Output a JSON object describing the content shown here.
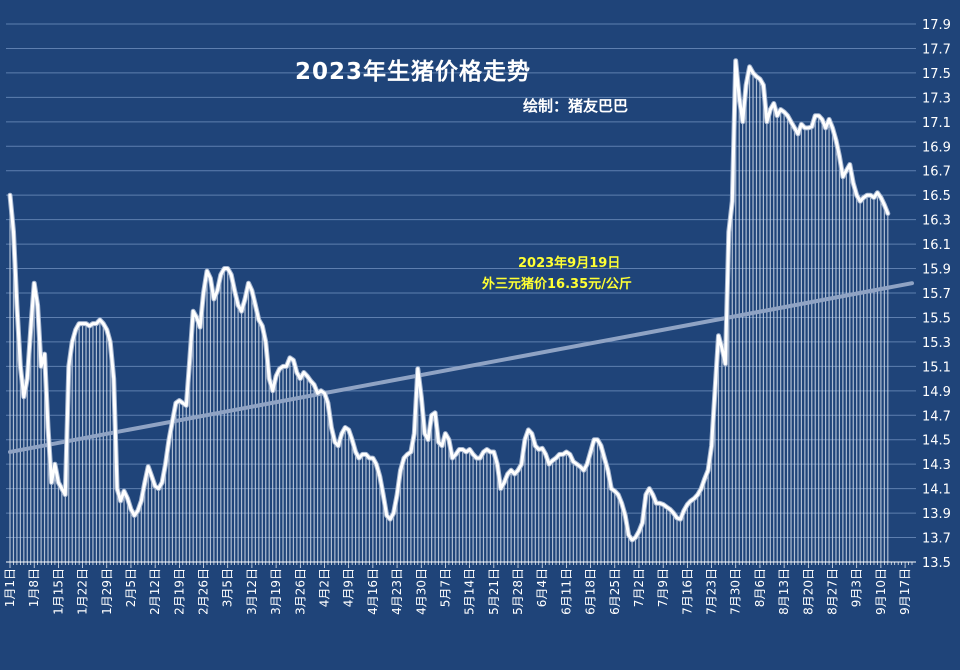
{
  "chart_data": {
    "type": "line",
    "title": "2023年生猪价格走势",
    "subtitle": "绘制：猪友巴巴",
    "annotation": [
      "2023年9月19日",
      "外三元猪价16.35元/公斤"
    ],
    "y_ticks": [
      "13.5",
      "13.7",
      "13.9",
      "14.1",
      "14.3",
      "14.5",
      "14.7",
      "14.9",
      "15.1",
      "15.3",
      "15.5",
      "15.7",
      "15.9",
      "16.1",
      "16.3",
      "16.5",
      "16.7",
      "16.9",
      "17.1",
      "17.3",
      "17.5",
      "17.7",
      "17.9"
    ],
    "ylim": [
      13.5,
      17.9
    ],
    "x_ticks": [
      "1月1日",
      "1月8日",
      "1月15日",
      "1月22日",
      "1月29日",
      "2月5日",
      "2月12日",
      "2月19日",
      "2月26日",
      "3月5日",
      "3月12日",
      "3月19日",
      "3月26日",
      "4月2日",
      "4月9日",
      "4月16日",
      "4月23日",
      "4月30日",
      "5月7日",
      "5月14日",
      "5月21日",
      "5月28日",
      "6月4日",
      "6月11日",
      "6月18日",
      "6月25日",
      "7月2日",
      "7月9日",
      "7月16日",
      "7月23日",
      "7月30日",
      "8月6日",
      "8月13日",
      "8月20日",
      "8月27日",
      "9月3日",
      "9月10日",
      "9月17日"
    ],
    "x_days": 262,
    "grid": true,
    "y_axis_position": "right",
    "trendline": {
      "start": 14.4,
      "end": 15.78
    },
    "series": [
      {
        "color": "#FFFFFF",
        "points": [
          [
            0,
            16.5
          ],
          [
            1,
            16.2
          ],
          [
            2,
            15.6
          ],
          [
            3,
            15.1
          ],
          [
            4,
            14.85
          ],
          [
            5,
            15.0
          ],
          [
            6,
            15.4
          ],
          [
            7,
            15.78
          ],
          [
            8,
            15.6
          ],
          [
            9,
            15.1
          ],
          [
            10,
            15.2
          ],
          [
            11,
            14.6
          ],
          [
            12,
            14.15
          ],
          [
            13,
            14.3
          ],
          [
            14,
            14.15
          ],
          [
            15,
            14.1
          ],
          [
            16,
            14.05
          ],
          [
            17,
            15.1
          ],
          [
            18,
            15.3
          ],
          [
            19,
            15.4
          ],
          [
            20,
            15.45
          ],
          [
            21,
            15.45
          ],
          [
            22,
            15.45
          ],
          [
            23,
            15.43
          ],
          [
            24,
            15.45
          ],
          [
            25,
            15.45
          ],
          [
            26,
            15.48
          ],
          [
            27,
            15.45
          ],
          [
            28,
            15.4
          ],
          [
            29,
            15.3
          ],
          [
            30,
            15.0
          ],
          [
            31,
            14.1
          ],
          [
            32,
            14.0
          ],
          [
            33,
            14.08
          ],
          [
            34,
            14.02
          ],
          [
            35,
            13.93
          ],
          [
            36,
            13.88
          ],
          [
            37,
            13.92
          ],
          [
            38,
            14.0
          ],
          [
            39,
            14.15
          ],
          [
            40,
            14.28
          ],
          [
            41,
            14.2
          ],
          [
            42,
            14.12
          ],
          [
            43,
            14.1
          ],
          [
            44,
            14.15
          ],
          [
            45,
            14.3
          ],
          [
            46,
            14.5
          ],
          [
            47,
            14.65
          ],
          [
            48,
            14.8
          ],
          [
            49,
            14.82
          ],
          [
            50,
            14.8
          ],
          [
            51,
            14.78
          ],
          [
            52,
            15.15
          ],
          [
            53,
            15.55
          ],
          [
            54,
            15.5
          ],
          [
            55,
            15.42
          ],
          [
            56,
            15.7
          ],
          [
            57,
            15.88
          ],
          [
            58,
            15.82
          ],
          [
            59,
            15.65
          ],
          [
            60,
            15.72
          ],
          [
            61,
            15.85
          ],
          [
            62,
            15.9
          ],
          [
            63,
            15.9
          ],
          [
            64,
            15.85
          ],
          [
            65,
            15.72
          ],
          [
            66,
            15.6
          ],
          [
            67,
            15.55
          ],
          [
            68,
            15.65
          ],
          [
            69,
            15.78
          ],
          [
            70,
            15.72
          ],
          [
            71,
            15.6
          ],
          [
            72,
            15.48
          ],
          [
            73,
            15.43
          ],
          [
            74,
            15.3
          ],
          [
            75,
            15.0
          ],
          [
            76,
            14.9
          ],
          [
            77,
            15.02
          ],
          [
            78,
            15.08
          ],
          [
            79,
            15.1
          ],
          [
            80,
            15.1
          ],
          [
            81,
            15.17
          ],
          [
            82,
            15.15
          ],
          [
            83,
            15.05
          ],
          [
            84,
            15.0
          ],
          [
            85,
            15.05
          ],
          [
            86,
            15.02
          ],
          [
            87,
            14.98
          ],
          [
            88,
            14.95
          ],
          [
            89,
            14.88
          ],
          [
            90,
            14.9
          ],
          [
            91,
            14.88
          ],
          [
            92,
            14.8
          ],
          [
            93,
            14.6
          ],
          [
            94,
            14.48
          ],
          [
            95,
            14.45
          ],
          [
            96,
            14.55
          ],
          [
            97,
            14.6
          ],
          [
            98,
            14.58
          ],
          [
            99,
            14.5
          ],
          [
            100,
            14.4
          ],
          [
            101,
            14.35
          ],
          [
            102,
            14.38
          ],
          [
            103,
            14.38
          ],
          [
            104,
            14.35
          ],
          [
            105,
            14.35
          ],
          [
            106,
            14.3
          ],
          [
            107,
            14.2
          ],
          [
            108,
            14.05
          ],
          [
            109,
            13.88
          ],
          [
            110,
            13.85
          ],
          [
            111,
            13.9
          ],
          [
            112,
            14.05
          ],
          [
            113,
            14.25
          ],
          [
            114,
            14.35
          ],
          [
            115,
            14.38
          ],
          [
            116,
            14.4
          ],
          [
            117,
            14.55
          ],
          [
            118,
            15.08
          ],
          [
            119,
            14.85
          ],
          [
            120,
            14.55
          ],
          [
            121,
            14.5
          ],
          [
            122,
            14.7
          ],
          [
            123,
            14.72
          ],
          [
            124,
            14.48
          ],
          [
            125,
            14.45
          ],
          [
            126,
            14.55
          ],
          [
            127,
            14.5
          ],
          [
            128,
            14.35
          ],
          [
            129,
            14.38
          ],
          [
            130,
            14.42
          ],
          [
            131,
            14.42
          ],
          [
            132,
            14.4
          ],
          [
            133,
            14.42
          ],
          [
            134,
            14.38
          ],
          [
            135,
            14.35
          ],
          [
            136,
            14.35
          ],
          [
            137,
            14.4
          ],
          [
            138,
            14.42
          ],
          [
            139,
            14.4
          ],
          [
            140,
            14.4
          ],
          [
            141,
            14.3
          ],
          [
            142,
            14.1
          ],
          [
            143,
            14.15
          ],
          [
            144,
            14.22
          ],
          [
            145,
            14.25
          ],
          [
            146,
            14.22
          ],
          [
            147,
            14.25
          ],
          [
            148,
            14.3
          ],
          [
            149,
            14.5
          ],
          [
            150,
            14.58
          ],
          [
            151,
            14.55
          ],
          [
            152,
            14.45
          ],
          [
            153,
            14.42
          ],
          [
            154,
            14.43
          ],
          [
            155,
            14.38
          ],
          [
            156,
            14.3
          ],
          [
            157,
            14.33
          ],
          [
            158,
            14.35
          ],
          [
            159,
            14.38
          ],
          [
            160,
            14.38
          ],
          [
            161,
            14.4
          ],
          [
            162,
            14.38
          ],
          [
            163,
            14.32
          ],
          [
            164,
            14.3
          ],
          [
            165,
            14.28
          ],
          [
            166,
            14.25
          ],
          [
            167,
            14.3
          ],
          [
            168,
            14.4
          ],
          [
            169,
            14.5
          ],
          [
            170,
            14.5
          ],
          [
            171,
            14.45
          ],
          [
            172,
            14.35
          ],
          [
            173,
            14.25
          ],
          [
            174,
            14.1
          ],
          [
            175,
            14.08
          ],
          [
            176,
            14.05
          ],
          [
            177,
            13.98
          ],
          [
            178,
            13.88
          ],
          [
            179,
            13.72
          ],
          [
            180,
            13.68
          ],
          [
            181,
            13.7
          ],
          [
            182,
            13.75
          ],
          [
            183,
            13.82
          ],
          [
            184,
            14.05
          ],
          [
            185,
            14.1
          ],
          [
            186,
            14.05
          ],
          [
            187,
            13.98
          ],
          [
            188,
            13.98
          ],
          [
            189,
            13.97
          ],
          [
            190,
            13.95
          ],
          [
            191,
            13.93
          ],
          [
            192,
            13.9
          ],
          [
            193,
            13.86
          ],
          [
            194,
            13.85
          ],
          [
            195,
            13.92
          ],
          [
            196,
            13.97
          ],
          [
            197,
            14.0
          ],
          [
            198,
            14.02
          ],
          [
            199,
            14.05
          ],
          [
            200,
            14.1
          ],
          [
            201,
            14.18
          ],
          [
            202,
            14.25
          ],
          [
            203,
            14.45
          ],
          [
            204,
            14.9
          ],
          [
            205,
            15.35
          ],
          [
            206,
            15.25
          ],
          [
            207,
            15.12
          ],
          [
            208,
            16.2
          ],
          [
            209,
            16.45
          ],
          [
            210,
            17.6
          ],
          [
            211,
            17.3
          ],
          [
            212,
            17.1
          ],
          [
            213,
            17.4
          ],
          [
            214,
            17.55
          ],
          [
            215,
            17.5
          ],
          [
            216,
            17.47
          ],
          [
            217,
            17.45
          ],
          [
            218,
            17.4
          ],
          [
            219,
            17.1
          ],
          [
            220,
            17.2
          ],
          [
            221,
            17.25
          ],
          [
            222,
            17.15
          ],
          [
            223,
            17.2
          ],
          [
            224,
            17.18
          ],
          [
            225,
            17.15
          ],
          [
            226,
            17.1
          ],
          [
            227,
            17.05
          ],
          [
            228,
            17.0
          ],
          [
            229,
            17.08
          ],
          [
            230,
            17.05
          ],
          [
            231,
            17.05
          ],
          [
            232,
            17.06
          ],
          [
            233,
            17.15
          ],
          [
            234,
            17.15
          ],
          [
            235,
            17.12
          ],
          [
            236,
            17.05
          ],
          [
            237,
            17.12
          ],
          [
            238,
            17.05
          ],
          [
            239,
            16.95
          ],
          [
            240,
            16.82
          ],
          [
            241,
            16.65
          ],
          [
            242,
            16.7
          ],
          [
            243,
            16.75
          ],
          [
            244,
            16.6
          ],
          [
            245,
            16.5
          ],
          [
            246,
            16.45
          ],
          [
            247,
            16.48
          ],
          [
            248,
            16.5
          ],
          [
            249,
            16.5
          ],
          [
            250,
            16.48
          ],
          [
            251,
            16.52
          ],
          [
            252,
            16.48
          ],
          [
            253,
            16.42
          ],
          [
            254,
            16.35
          ]
        ]
      }
    ]
  }
}
